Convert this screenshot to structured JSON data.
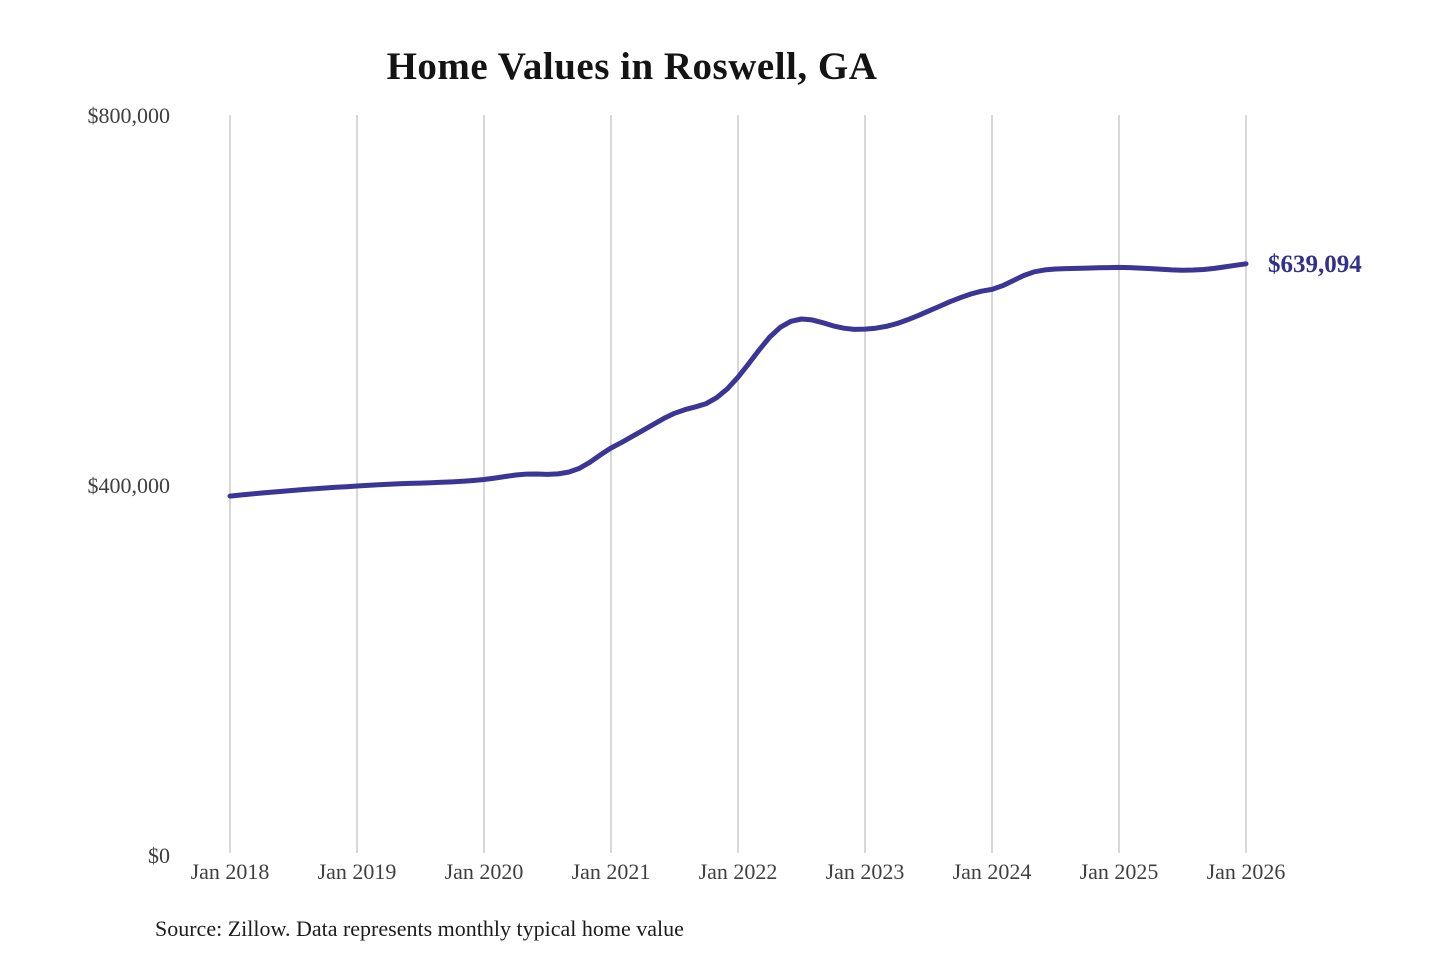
{
  "title": "Home Values in Roswell, GA",
  "source_note": "Source: Zillow. Data represents monthly typical home value",
  "colors": {
    "line": "#3b3695",
    "end_label": "#32308d",
    "grid": "#c7c7c7",
    "axis_text": "#3f3f3f",
    "background": "#ffffff"
  },
  "chart_data": {
    "type": "line",
    "title": "Home Values in Roswell, GA",
    "xlabel": "",
    "ylabel": "",
    "x_start": "2018-01",
    "x_end": "2026-01",
    "x_interval": "monthly",
    "x_tick_labels": [
      "Jan 2018",
      "Jan 2019",
      "Jan 2020",
      "Jan 2021",
      "Jan 2022",
      "Jan 2023",
      "Jan 2024",
      "Jan 2025",
      "Jan 2026"
    ],
    "months_per_x_tick": 12,
    "y_ticks": [
      {
        "value": 0,
        "label": "$0"
      },
      {
        "value": 400000,
        "label": "$400,000"
      },
      {
        "value": 800000,
        "label": "$800,000"
      }
    ],
    "ylim": [
      0,
      800000
    ],
    "grid": "vertical-only",
    "legend": "none",
    "series": [
      {
        "name": "Monthly typical home value",
        "values": [
          388000,
          389200,
          390300,
          391300,
          392300,
          393300,
          394200,
          395100,
          396000,
          396800,
          397500,
          398200,
          398900,
          399600,
          400200,
          400800,
          401300,
          401700,
          402100,
          402500,
          402900,
          403400,
          404000,
          404900,
          406000,
          407500,
          409200,
          410800,
          411800,
          411900,
          411500,
          412000,
          414000,
          418000,
          424500,
          432500,
          440000,
          446000,
          452500,
          459000,
          465500,
          472000,
          477500,
          481500,
          484500,
          488000,
          494500,
          504000,
          516500,
          531000,
          546000,
          560000,
          570500,
          577000,
          579500,
          578500,
          575500,
          572000,
          569500,
          568200,
          568500,
          569500,
          571500,
          574500,
          578500,
          583000,
          588000,
          593000,
          598000,
          602500,
          606500,
          609500,
          611500,
          615500,
          621000,
          626500,
          630500,
          632500,
          633500,
          634000,
          634200,
          634500,
          634800,
          635000,
          635200,
          635000,
          634500,
          634000,
          633200,
          632500,
          632200,
          632400,
          633000,
          634200,
          635800,
          637500,
          639094
        ]
      }
    ],
    "end_value": 639094,
    "end_value_label": "$639,094"
  }
}
